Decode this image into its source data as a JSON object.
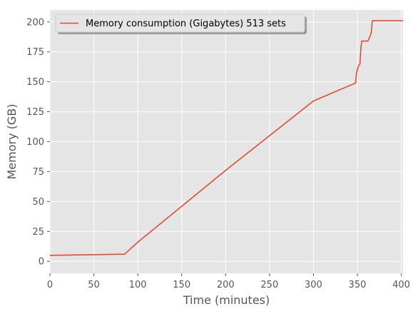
{
  "chart_data": {
    "type": "line",
    "xlabel": "Time (minutes)",
    "ylabel": "Memory (GB)",
    "xlim": [
      0,
      402
    ],
    "ylim": [
      -10,
      210
    ],
    "xticks": [
      0,
      50,
      100,
      150,
      200,
      250,
      300,
      350,
      400
    ],
    "yticks": [
      0,
      25,
      50,
      75,
      100,
      125,
      150,
      175,
      200
    ],
    "grid": true,
    "legend_position": "top-left",
    "series": [
      {
        "name": "Memory consumption (Gigabytes) 513 sets",
        "color": "#e24a33",
        "x": [
          0,
          85,
          100,
          150,
          200,
          250,
          300,
          348,
          349,
          351,
          353,
          354,
          355,
          356,
          361,
          362,
          365,
          366,
          367,
          402
        ],
        "y": [
          5,
          6,
          16,
          46,
          76,
          105,
          134,
          149,
          157,
          163,
          165,
          178,
          184,
          184,
          184,
          184,
          189,
          192,
          201,
          201
        ]
      }
    ]
  }
}
